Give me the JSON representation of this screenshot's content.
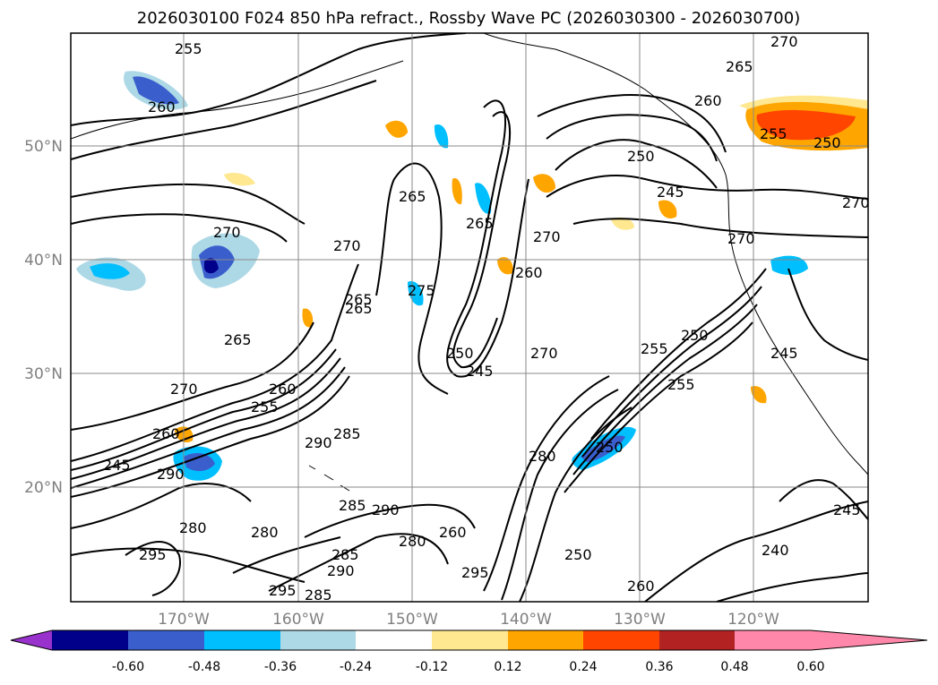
{
  "title": "2026030100 F024 850 hPa refract., Rossby Wave PC (2026030300 - 2026030700)",
  "lat_labels": [
    "50°N",
    "40°N",
    "30°N",
    "20°N"
  ],
  "lon_labels": [
    "170°W",
    "160°W",
    "150°W",
    "140°W",
    "130°W",
    "120°W"
  ],
  "colorbar": {
    "tick_labels": [
      "-0.60",
      "-0.48",
      "-0.36",
      "-0.24",
      "-0.12",
      "0.12",
      "0.24",
      "0.36",
      "0.48",
      "0.60"
    ],
    "colors": [
      "#9932cc",
      "#00008b",
      "#3a5fcd",
      "#00bfff",
      "#add8e6",
      "#ffffff",
      "#ffe88f",
      "#ffa500",
      "#ff4500",
      "#b22222",
      "#ff88aa"
    ]
  },
  "contour_labels": [
    "255",
    "260",
    "270",
    "265",
    "260",
    "255",
    "250",
    "250",
    "265",
    "245",
    "270",
    "270",
    "265",
    "275",
    "270",
    "270",
    "270",
    "265",
    "270",
    "260",
    "255",
    "250",
    "245",
    "270",
    "265",
    "260",
    "255",
    "245",
    "290",
    "285",
    "290",
    "280",
    "285",
    "290",
    "295",
    "280",
    "260",
    "250",
    "255",
    "250",
    "245",
    "240",
    "260",
    "295",
    "285",
    "280",
    "250",
    "260",
    "265",
    "245",
    "295",
    "285",
    "290",
    "280"
  ]
}
